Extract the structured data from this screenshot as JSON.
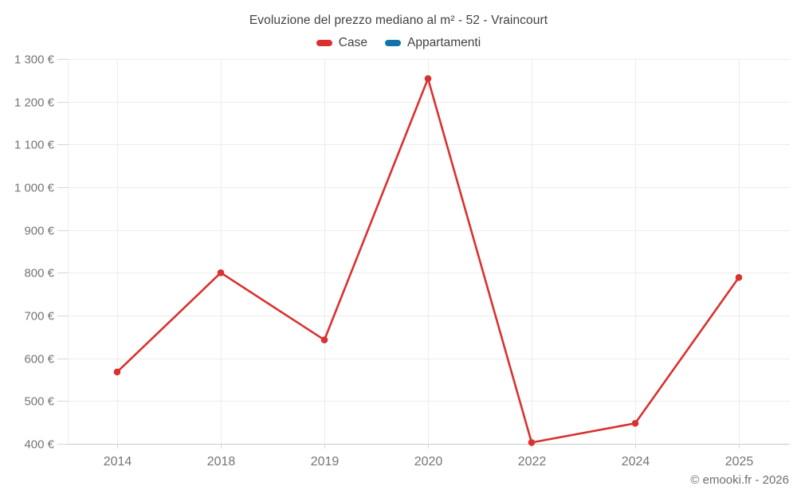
{
  "page": {
    "title": "Evoluzione del prezzo mediano al m² - 52 - Vraincourt",
    "footer": "© emooki.fr - 2026"
  },
  "legend": {
    "items": [
      {
        "label": "Case",
        "color": "#d9312f"
      },
      {
        "label": "Appartamenti",
        "color": "#1273a6"
      }
    ]
  },
  "chart_data": {
    "type": "line",
    "title": "Evoluzione del prezzo mediano al m² - 52 - Vraincourt",
    "categories": [
      "2014",
      "2018",
      "2019",
      "2020",
      "2022",
      "2024",
      "2025"
    ],
    "series": [
      {
        "name": "Case",
        "color": "#d9312f",
        "values": [
          568,
          800,
          643,
          1254,
          403,
          448,
          789
        ]
      },
      {
        "name": "Appartamenti",
        "color": "#1273a6",
        "values": []
      }
    ],
    "xlabel": "",
    "ylabel": "",
    "ylim": [
      400,
      1300
    ],
    "ytick_step": 100,
    "yticks": [
      400,
      500,
      600,
      700,
      800,
      900,
      1000,
      1100,
      1200,
      1300
    ],
    "ytick_labels": [
      "400 €",
      "500 €",
      "600 €",
      "700 €",
      "800 €",
      "900 €",
      "1 000 €",
      "1 100 €",
      "1 200 €",
      "1 300 €"
    ],
    "currency": "€",
    "grid": true,
    "legend_position": "top",
    "footer": "© emooki.fr - 2026"
  },
  "colors": {
    "grid_line": "#ececec",
    "axis_line": "#c9c9c9",
    "tick_mark": "#d6d6d6",
    "axis_label": "#757575",
    "title_text": "#424242",
    "footer_text": "#6e6e6e"
  }
}
